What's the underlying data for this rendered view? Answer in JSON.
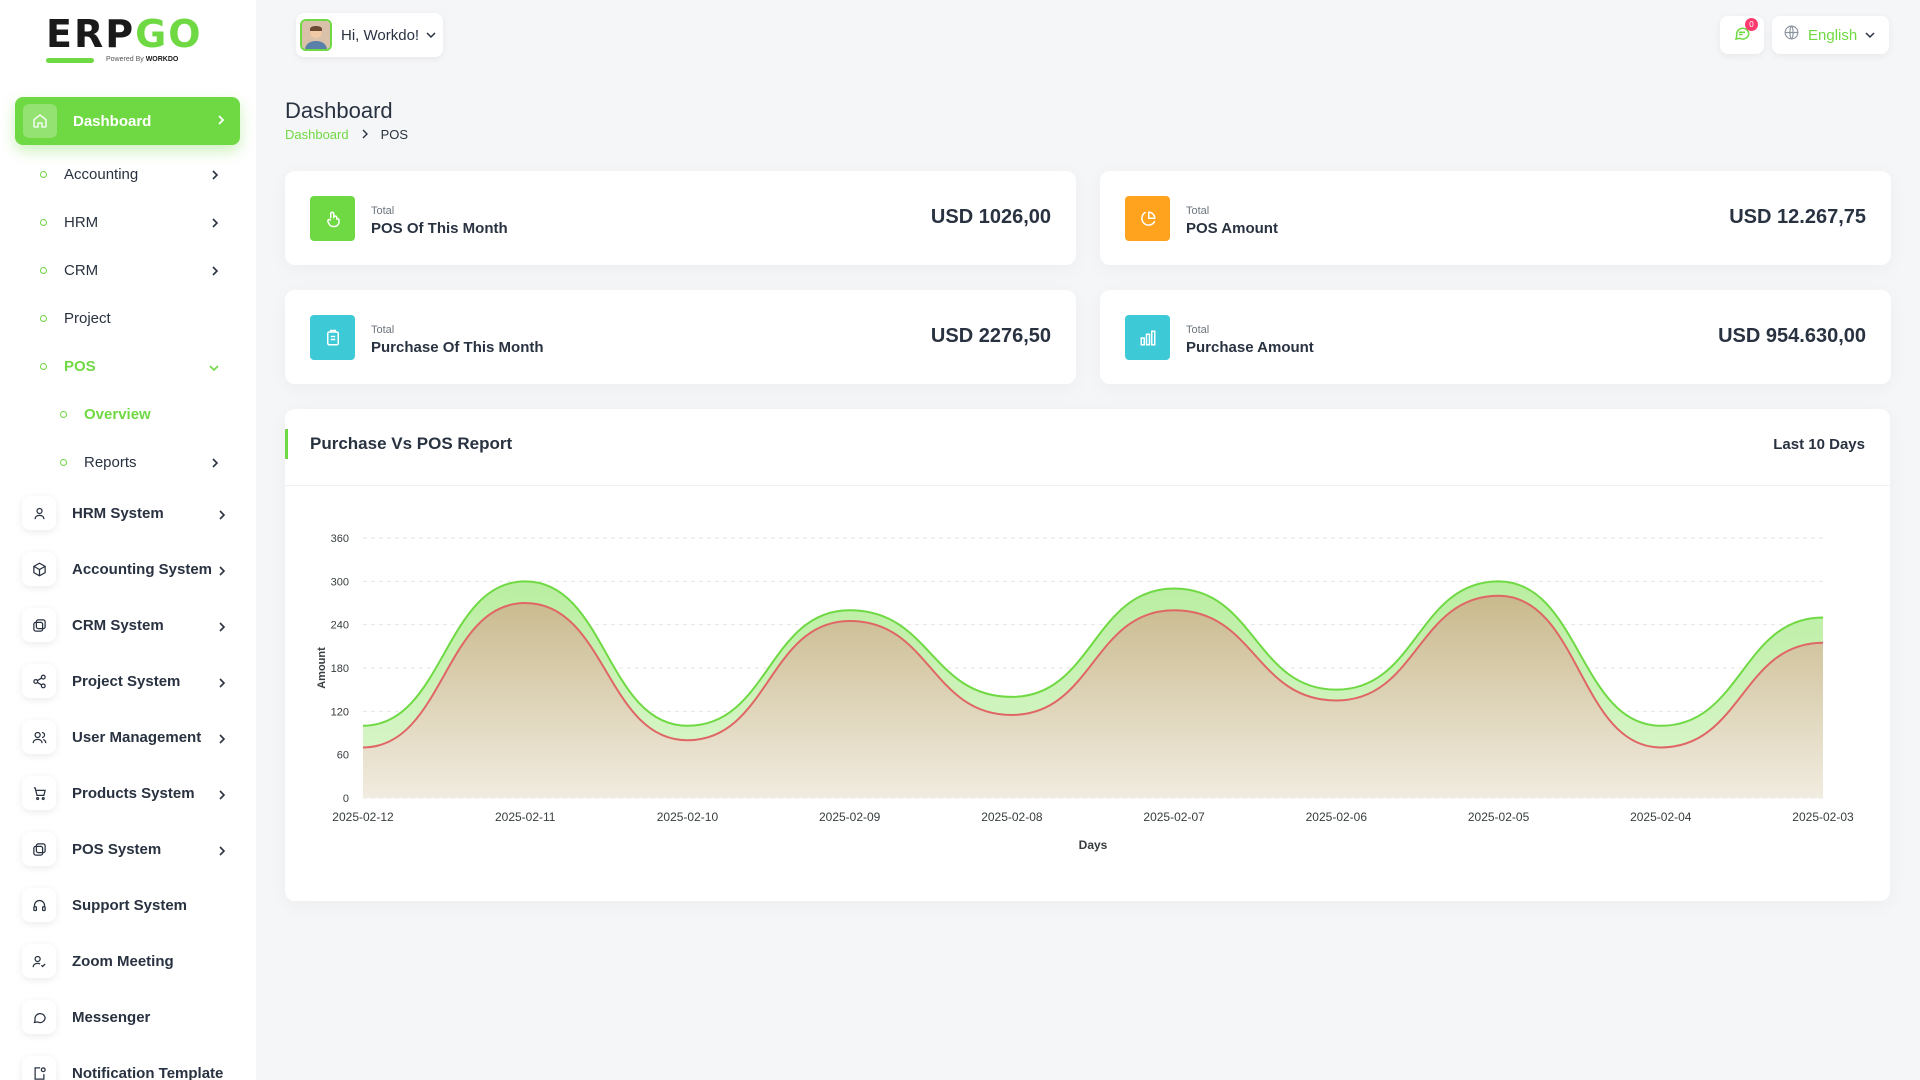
{
  "brand": {
    "logo_main": "ERP",
    "logo_accent": "GO",
    "powered_by": "Powered By",
    "powered_brand": "WORKDO"
  },
  "header": {
    "greeting": "Hi, Workdo!",
    "notification_count": "0",
    "language": "English"
  },
  "sidebar": {
    "active": {
      "label": "Dashboard"
    },
    "sub_items": [
      {
        "label": "Accounting"
      },
      {
        "label": "HRM"
      },
      {
        "label": "CRM"
      },
      {
        "label": "Project"
      },
      {
        "label": "POS"
      }
    ],
    "pos_children": [
      {
        "label": "Overview"
      },
      {
        "label": "Reports"
      }
    ],
    "systems": [
      {
        "label": "HRM System",
        "icon": "user-icon"
      },
      {
        "label": "Accounting System",
        "icon": "box-icon"
      },
      {
        "label": "CRM System",
        "icon": "layers-icon"
      },
      {
        "label": "Project System",
        "icon": "share-icon"
      },
      {
        "label": "User Management",
        "icon": "users-icon"
      },
      {
        "label": "Products System",
        "icon": "cart-icon"
      },
      {
        "label": "POS System",
        "icon": "layers-icon"
      },
      {
        "label": "Support System",
        "icon": "headset-icon"
      },
      {
        "label": "Zoom Meeting",
        "icon": "user-check-icon"
      },
      {
        "label": "Messenger",
        "icon": "message-icon"
      },
      {
        "label": "Notification Template",
        "icon": "bell-template-icon"
      }
    ]
  },
  "page": {
    "title": "Dashboard",
    "breadcrumb": [
      "Dashboard",
      "POS"
    ]
  },
  "cards": [
    {
      "small": "Total",
      "label": "POS Of This Month",
      "amount": "USD 1026,00",
      "color": "#6fd943",
      "icon": "hand-pointer-icon"
    },
    {
      "small": "Total",
      "label": "POS Amount",
      "amount": "USD 12.267,75",
      "color": "#ffa21d",
      "icon": "pie-chart-icon"
    },
    {
      "small": "Total",
      "label": "Purchase Of This Month",
      "amount": "USD 2276,50",
      "color": "#3ec9d6",
      "icon": "clipboard-icon"
    },
    {
      "small": "Total",
      "label": "Purchase Amount",
      "amount": "USD 954.630,00",
      "color": "#3ec9d6",
      "icon": "bar-chart-icon"
    }
  ],
  "report": {
    "title": "Purchase Vs POS Report",
    "range": "Last 10 Days"
  },
  "chart_data": {
    "type": "area",
    "x": [
      "2025-02-12",
      "2025-02-11",
      "2025-02-10",
      "2025-02-09",
      "2025-02-08",
      "2025-02-07",
      "2025-02-06",
      "2025-02-05",
      "2025-02-04",
      "2025-02-03"
    ],
    "series": [
      {
        "values": [
          100,
          300,
          100,
          260,
          140,
          290,
          150,
          300,
          100,
          250
        ],
        "color": "#6fd943"
      },
      {
        "values": [
          70,
          270,
          80,
          245,
          115,
          260,
          135,
          280,
          70,
          215
        ],
        "color": "#e06666"
      }
    ],
    "xlabel": "Days",
    "ylabel": "Amount",
    "yticks": [
      0,
      60,
      120,
      180,
      240,
      300,
      360
    ],
    "ylim": [
      0,
      360
    ],
    "grid": true
  }
}
